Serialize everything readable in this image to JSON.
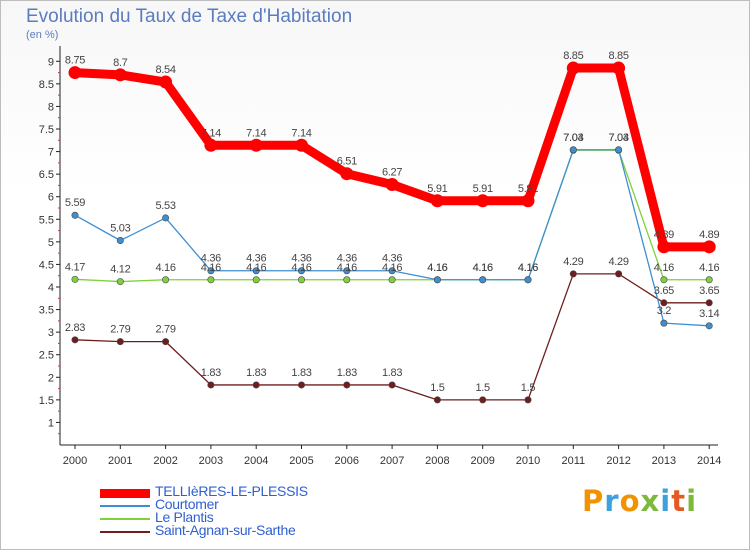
{
  "title": "Evolution du Taux de Taxe d'Habitation",
  "unit_label": "(en %)",
  "logo": {
    "text": "Proxiti",
    "letters": [
      {
        "ch": "P",
        "color": "#f39200"
      },
      {
        "ch": "r",
        "color": "#3da1dc"
      },
      {
        "ch": "o",
        "color": "#f39200"
      },
      {
        "ch": "x",
        "color": "#7dba3c"
      },
      {
        "ch": "i",
        "color": "#3da1dc"
      },
      {
        "ch": "t",
        "color": "#e35a22"
      },
      {
        "ch": "i",
        "color": "#7dba3c"
      }
    ]
  },
  "chart_data": {
    "type": "line",
    "title": "Evolution du Taux de Taxe d'Habitation",
    "ylabel": "(en %)",
    "ylim": [
      0.5,
      9.25
    ],
    "yticks": [
      "1",
      "1.5",
      "2",
      "2.5",
      "3",
      "3.5",
      "4",
      "4.5",
      "5",
      "5.5",
      "6",
      "6.5",
      "7",
      "7.5",
      "8",
      "8.5",
      "9"
    ],
    "categories": [
      "2000",
      "2001",
      "2002",
      "2003",
      "2004",
      "2005",
      "2006",
      "2007",
      "2008",
      "2009",
      "2010",
      "2011",
      "2012",
      "2013",
      "2014"
    ],
    "legend_position": "bottom-left",
    "series": [
      {
        "name": "TELLIèRES-LE-PLESSIS",
        "color": "#ff0000",
        "values": [
          8.75,
          8.7,
          8.54,
          7.14,
          7.14,
          7.14,
          6.51,
          6.27,
          5.91,
          5.91,
          5.91,
          8.85,
          8.85,
          4.89,
          4.89
        ],
        "labels": [
          "8.75",
          "8.7",
          "8.54",
          "7.14",
          "7.14",
          "7.14",
          "6.51",
          "6.27",
          "5.91",
          "5.91",
          "5.91",
          "8.85",
          "8.85",
          "4.89",
          "4.89"
        ]
      },
      {
        "name": "Courtomer",
        "color": "#3e8fd2",
        "values": [
          5.59,
          5.03,
          5.53,
          4.36,
          4.36,
          4.36,
          4.36,
          4.36,
          4.16,
          4.16,
          4.16,
          7.04,
          7.04,
          3.2,
          3.14
        ],
        "labels": [
          "5.59",
          "5.03",
          "5.53",
          "4.36",
          "4.36",
          "4.36",
          "4.36",
          "4.36",
          "4.16",
          "4.16",
          "4.16",
          "7.04",
          "7.04",
          "3.2",
          "3.14"
        ]
      },
      {
        "name": "Le Plantis",
        "color": "#7fd13b",
        "values": [
          4.17,
          4.12,
          4.16,
          4.16,
          4.16,
          4.16,
          4.16,
          4.16,
          4.16,
          4.16,
          4.16,
          7.03,
          7.03,
          4.16,
          4.16
        ],
        "labels": [
          "4.17",
          "4.12",
          "4.16",
          "4.16",
          "4.16",
          "4.16",
          "4.16",
          "4.16",
          "4.16",
          "4.16",
          "4.16",
          "7.03",
          "7.03",
          "4.16",
          "4.16"
        ]
      },
      {
        "name": "Saint-Agnan-sur-Sarthe",
        "color": "#6e1e1e",
        "values": [
          2.83,
          2.79,
          2.79,
          1.83,
          1.83,
          1.83,
          1.83,
          1.83,
          1.5,
          1.5,
          1.5,
          4.29,
          4.29,
          3.65,
          3.65
        ],
        "labels": [
          "2.83",
          "2.79",
          "2.79",
          "1.83",
          "1.83",
          "1.83",
          "1.83",
          "1.83",
          "1.5",
          "1.5",
          "1.5",
          "4.29",
          "4.29",
          "3.65",
          "3.65"
        ]
      }
    ]
  }
}
